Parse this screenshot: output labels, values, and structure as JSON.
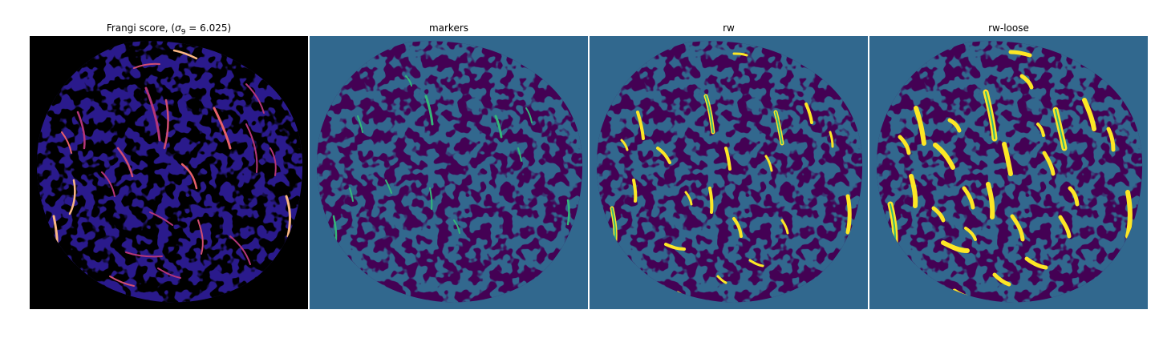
{
  "panels": [
    {
      "title_prefix": "Frangi score, (",
      "sigma_symbol": "σ",
      "sigma_subscript": "9",
      "title_suffix": " = 6.025)",
      "colormap": "magma"
    },
    {
      "title": "markers",
      "colormap": "viridis"
    },
    {
      "title": "rw",
      "colormap": "viridis"
    },
    {
      "title": "rw-loose",
      "colormap": "viridis"
    }
  ],
  "colors": {
    "frangi_background": "#000000",
    "frangi_low": "#2a1a8c",
    "frangi_mid": "#b5367a",
    "frangi_high": "#fcb883",
    "label_background": "#31688e",
    "label_tissue": "#440154",
    "label_marker": "#35b779",
    "label_vessel": "#fde725"
  }
}
